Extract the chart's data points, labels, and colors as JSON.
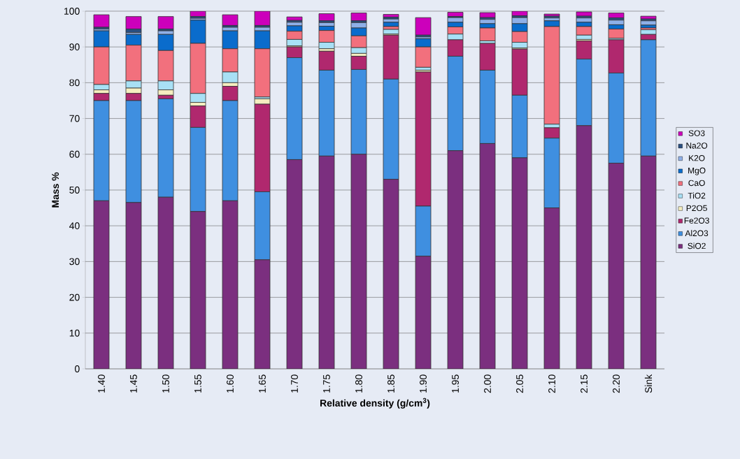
{
  "chart_data": {
    "type": "bar",
    "stacked": true,
    "xlabel": "Relative density (g/cm$^{3}$)",
    "ylabel": "Mass %",
    "categories": [
      "1.40",
      "1.45",
      "1.50",
      "1.55",
      "1.60",
      "1.65",
      "1.70",
      "1.75",
      "1.80",
      "1.85",
      "1.90",
      "1.95",
      "2.00",
      "2.05",
      "2.10",
      "2.15",
      "2.20",
      "Sink"
    ],
    "ylim": [
      0,
      100
    ],
    "yticks": [
      0,
      10,
      20,
      30,
      40,
      50,
      60,
      70,
      80,
      90,
      100
    ],
    "grid": "y",
    "legend": "right",
    "series": [
      {
        "name": "SiO2",
        "color": "#7b2f7f",
        "values": [
          47,
          46.5,
          48,
          44,
          47,
          30.5,
          58.5,
          59.5,
          60,
          53,
          31.5,
          61,
          63,
          59,
          45,
          68,
          57.5,
          59.5
        ]
      },
      {
        "name": "Al2O3",
        "color": "#3f8fe0",
        "values": [
          28,
          28.5,
          27.5,
          23.5,
          28,
          19,
          28.5,
          24,
          23.7,
          28,
          14,
          26.4,
          20.5,
          17.5,
          19.5,
          18.6,
          25.2,
          32.5
        ]
      },
      {
        "name": "Fe2O3",
        "color": "#b0286e",
        "values": [
          2,
          2,
          1,
          6,
          4,
          24.5,
          3,
          5.3,
          3.7,
          12.3,
          37.5,
          4.6,
          7.5,
          12.9,
          2.9,
          5.1,
          9.3,
          1.5
        ]
      },
      {
        "name": "P2O5",
        "color": "#f5eec0",
        "values": [
          1,
          1.5,
          1.5,
          1,
          1,
          1.5,
          0.3,
          0.7,
          0.8,
          0.3,
          0.5,
          null,
          null,
          0.3,
          0,
          0.4,
          null,
          null
        ]
      },
      {
        "name": "TiO2",
        "color": "#a8e0f5",
        "values": [
          1.5,
          2,
          2.5,
          2.5,
          3,
          0.5,
          1.8,
          1.8,
          1.6,
          1.3,
          0.8,
          1.6,
          0.7,
          1.6,
          1,
          1.2,
          0.4,
          1.3
        ]
      },
      {
        "name": "CaO",
        "color": "#f2707d",
        "values": [
          10.5,
          10,
          8.5,
          14,
          6.5,
          13.5,
          2.3,
          3.3,
          3.3,
          0.8,
          5.7,
          2,
          3.6,
          3,
          27.3,
          2.4,
          2.6,
          0.5
        ]
      },
      {
        "name": "MgO",
        "color": "#0a6ccc",
        "values": [
          4.5,
          3,
          4.5,
          6.5,
          5,
          5,
          1.5,
          1.2,
          2.2,
          1.2,
          2.3,
          1.3,
          1.2,
          2.2,
          1.6,
          1.2,
          1.2,
          0.8
        ]
      },
      {
        "name": "K2O",
        "color": "#8fb0e8",
        "values": [
          0.5,
          0.5,
          1,
          0.5,
          1,
          1,
          1,
          1,
          1.5,
          0.9,
          0.5,
          1.3,
          1.2,
          1.7,
          0.8,
          1.2,
          1.3,
          1.2
        ]
      },
      {
        "name": "Na2O",
        "color": "#2a4f80",
        "values": [
          0.5,
          1,
          0.5,
          0.5,
          0.5,
          0.5,
          0.5,
          0.5,
          0.5,
          0.5,
          0.5,
          0.3,
          0.5,
          0.5,
          0.5,
          0.5,
          0.6,
          0.5
        ]
      },
      {
        "name": "SO3",
        "color": "#cc00bb",
        "values": [
          3.5,
          3.5,
          3.5,
          1.5,
          3,
          4,
          1,
          2,
          2.2,
          0.8,
          4.9,
          1.2,
          1.4,
          1.3,
          0.6,
          1.2,
          1.4,
          0.8
        ]
      }
    ]
  }
}
